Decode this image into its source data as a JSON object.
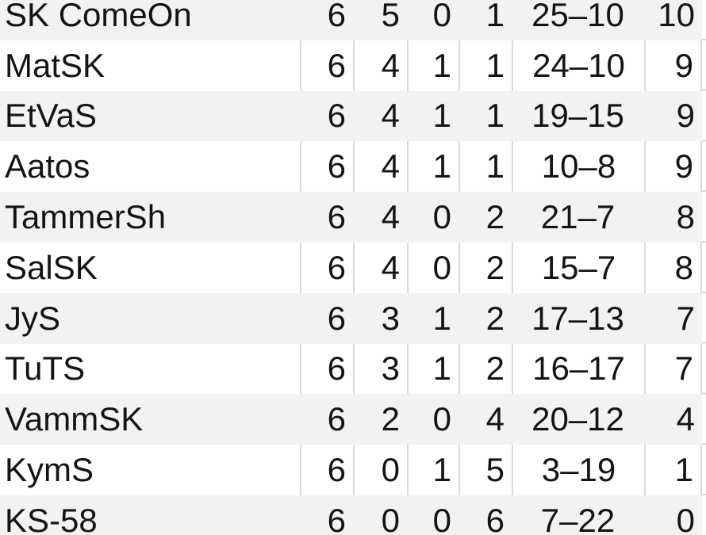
{
  "colors": {
    "band": "#f2f2f2",
    "gridline": "#d9d9d9",
    "text": "#141414",
    "background": "#ffffff"
  },
  "chart_data": {
    "type": "table",
    "description_visible_header": false,
    "column_keys": [
      "team",
      "played",
      "wins",
      "draws",
      "losses",
      "goals",
      "points"
    ],
    "rows": [
      {
        "team": "SK ComeOn",
        "played": 6,
        "wins": 5,
        "draws": 0,
        "losses": 1,
        "goals": "25–10",
        "points": 10
      },
      {
        "team": "MatSK",
        "played": 6,
        "wins": 4,
        "draws": 1,
        "losses": 1,
        "goals": "24–10",
        "points": 9
      },
      {
        "team": "EtVaS",
        "played": 6,
        "wins": 4,
        "draws": 1,
        "losses": 1,
        "goals": "19–15",
        "points": 9
      },
      {
        "team": "Aatos",
        "played": 6,
        "wins": 4,
        "draws": 1,
        "losses": 1,
        "goals": "10–8",
        "points": 9
      },
      {
        "team": "TammerSh",
        "played": 6,
        "wins": 4,
        "draws": 0,
        "losses": 2,
        "goals": "21–7",
        "points": 8
      },
      {
        "team": "SalSK",
        "played": 6,
        "wins": 4,
        "draws": 0,
        "losses": 2,
        "goals": "15–7",
        "points": 8
      },
      {
        "team": "JyS",
        "played": 6,
        "wins": 3,
        "draws": 1,
        "losses": 2,
        "goals": "17–13",
        "points": 7
      },
      {
        "team": "TuTS",
        "played": 6,
        "wins": 3,
        "draws": 1,
        "losses": 2,
        "goals": "16–17",
        "points": 7
      },
      {
        "team": "VammSK",
        "played": 6,
        "wins": 2,
        "draws": 0,
        "losses": 4,
        "goals": "20–12",
        "points": 4
      },
      {
        "team": "KymS",
        "played": 6,
        "wins": 0,
        "draws": 1,
        "losses": 5,
        "goals": "3–19",
        "points": 1
      },
      {
        "team": "KS-58",
        "played": 6,
        "wins": 0,
        "draws": 0,
        "losses": 6,
        "goals": "7–22",
        "points": 0
      }
    ]
  }
}
